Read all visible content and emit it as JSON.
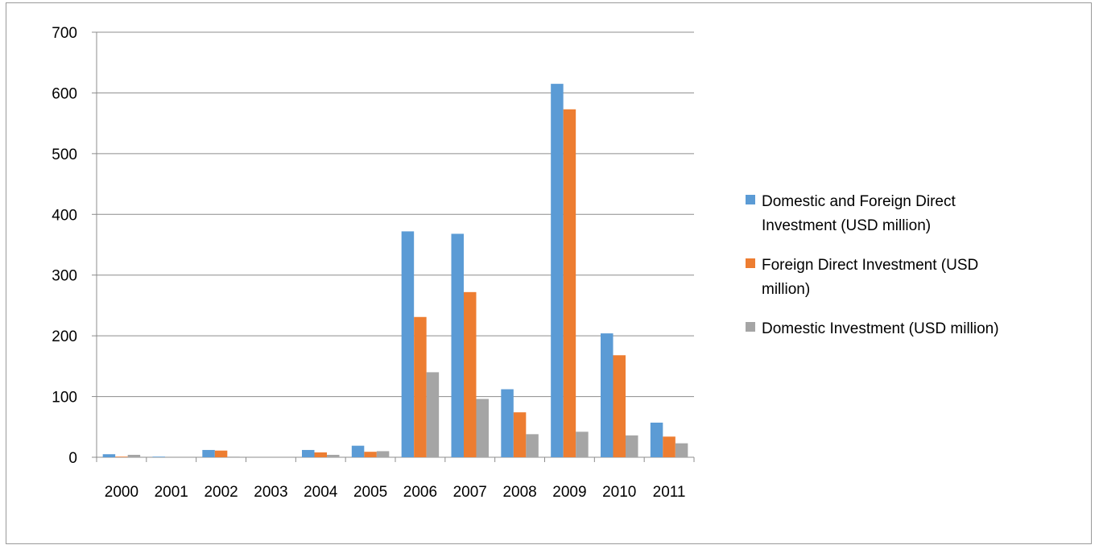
{
  "chart_data": {
    "type": "bar",
    "title": "",
    "xlabel": "",
    "ylabel": "",
    "ylim": [
      0,
      700
    ],
    "yticks": [
      0,
      100,
      200,
      300,
      400,
      500,
      600,
      700
    ],
    "grid": true,
    "legend_position": "right",
    "categories": [
      "2000",
      "2001",
      "2002",
      "2003",
      "2004",
      "2005",
      "2006",
      "2007",
      "2008",
      "2009",
      "2010",
      "2011"
    ],
    "series": [
      {
        "name": "Domestic and Foreign Direct Investment (USD million)",
        "color": "#5b9bd5",
        "values": [
          5,
          1,
          12,
          0,
          12,
          19,
          372,
          368,
          112,
          615,
          204,
          57
        ]
      },
      {
        "name": "Foreign Direct Investment (USD million)",
        "color": "#ed7d31",
        "values": [
          1,
          0,
          11,
          0,
          8,
          9,
          231,
          272,
          74,
          573,
          168,
          34
        ]
      },
      {
        "name": "Domestic Investment (USD million)",
        "color": "#a5a5a5",
        "values": [
          4,
          0,
          1,
          0,
          4,
          10,
          140,
          96,
          38,
          42,
          36,
          23
        ]
      }
    ],
    "legend_lines": [
      [
        "Domestic and Foreign Direct",
        "Investment (USD million)"
      ],
      [
        "Foreign Direct Investment (USD",
        "million)"
      ],
      [
        "Domestic Investment (USD million)"
      ]
    ]
  }
}
